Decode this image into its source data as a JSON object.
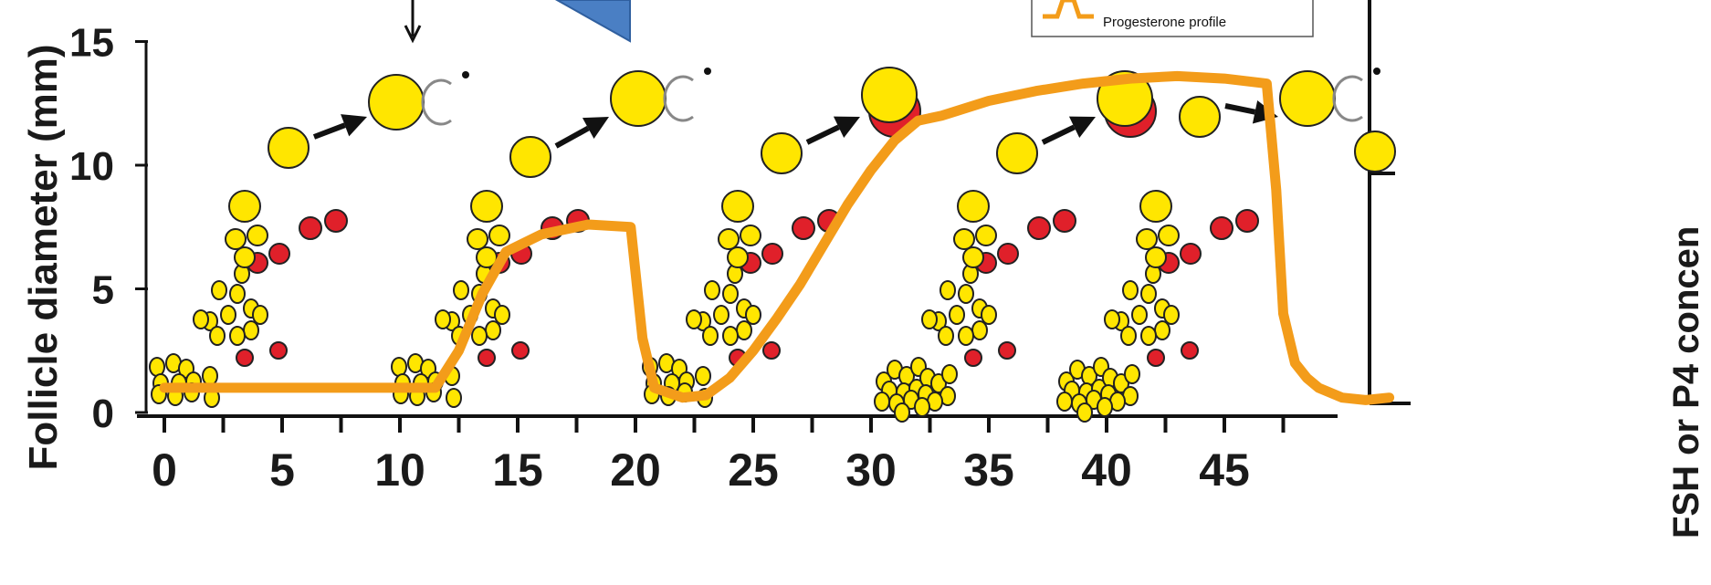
{
  "chart_data": {
    "type": "line",
    "ylabel": "Follicle diameter (mm)",
    "right_axis_label": "FSH or P4 concen",
    "xlim": [
      0,
      50
    ],
    "ylim": [
      0,
      15
    ],
    "x_ticks": [
      0,
      5,
      10,
      15,
      20,
      25,
      30,
      35,
      40,
      45
    ],
    "y_ticks": [
      0,
      5,
      10,
      15
    ],
    "legend": {
      "entries": [
        "Progesterone profile"
      ],
      "placement": "top-right"
    },
    "series": [
      {
        "name": "Progesterone profile",
        "color": "#F39C1A",
        "x": [
          0,
          11.5,
          12.5,
          13.5,
          14.5,
          16,
          18,
          19.8,
          20.3,
          20.8,
          22,
          23,
          24,
          25,
          26,
          27,
          28,
          29,
          30,
          31,
          32,
          33,
          35,
          37,
          39,
          41,
          43,
          45,
          46.8,
          47.2,
          47.5,
          48,
          48.5,
          49,
          50,
          51,
          52
        ],
        "y": [
          1,
          1,
          2.5,
          4.8,
          6.5,
          7.2,
          7.6,
          7.5,
          3.0,
          1.0,
          0.6,
          0.7,
          1.4,
          2.5,
          3.8,
          5.2,
          6.8,
          8.4,
          9.8,
          11.0,
          11.8,
          12.0,
          12.6,
          13.0,
          13.3,
          13.5,
          13.6,
          13.5,
          13.3,
          9.0,
          4.0,
          2.0,
          1.4,
          1.0,
          0.6,
          0.5,
          0.6
        ]
      }
    ],
    "follicle_colors": {
      "growing": "#FFE600",
      "regressing": "#E0202A",
      "outline": "#222222"
    }
  }
}
